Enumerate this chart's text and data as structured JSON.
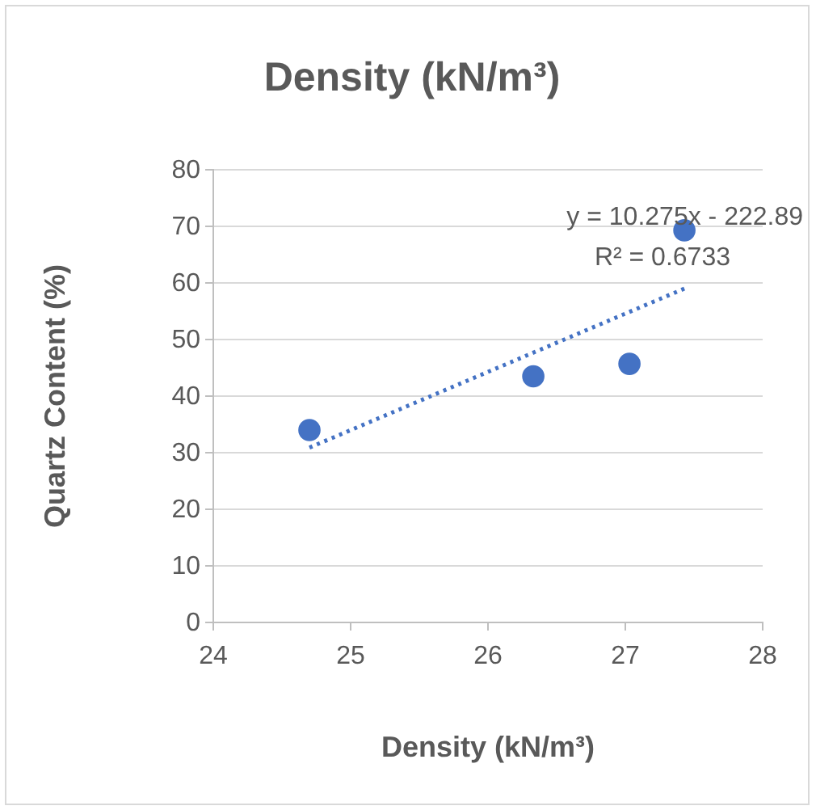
{
  "chart_data": {
    "type": "scatter",
    "title": "Density (kN/m³)",
    "xlabel": "Density (kN/m³)",
    "ylabel": "Quartz Content (%)",
    "xlim": [
      24,
      28
    ],
    "xticks": [
      24,
      25,
      26,
      27,
      28
    ],
    "ylim": [
      0,
      80
    ],
    "yticks": [
      0,
      10,
      20,
      30,
      40,
      50,
      60,
      70,
      80
    ],
    "grid": "y",
    "marker": "circle",
    "series": [
      {
        "color": "#4472c4",
        "x": [
          24.7,
          26.33,
          27.03,
          27.43
        ],
        "values": [
          34,
          43.5,
          45.7,
          69.3
        ]
      },
      {
        "type": "line",
        "color": "#4472c4",
        "line_style": "dotted",
        "marker": "none",
        "x": [
          24.7,
          27.43
        ],
        "values": [
          30.9,
          59
        ]
      }
    ],
    "annotations": [
      "y = 10.275x - 222.89",
      "R² = 0.6733"
    ]
  }
}
